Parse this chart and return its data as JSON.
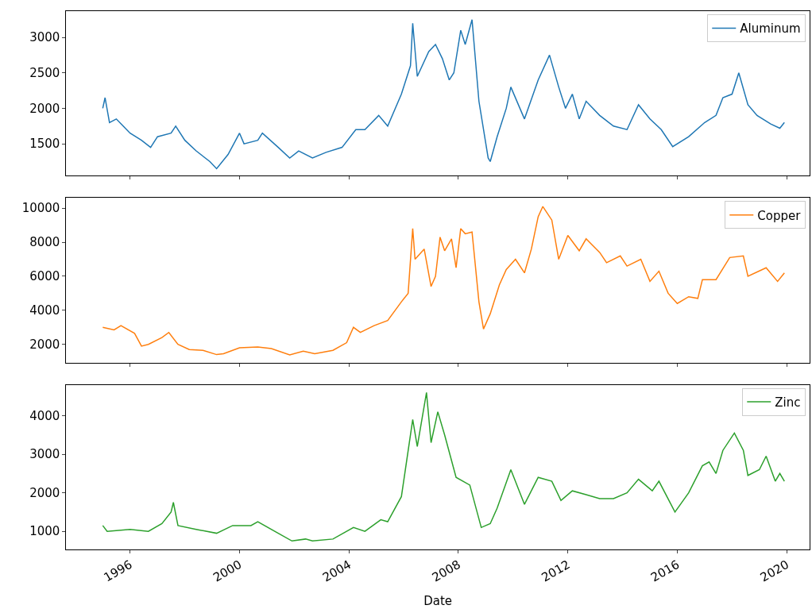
{
  "chart_data": [
    {
      "type": "line",
      "tick_labels": "y",
      "legend": "top right",
      "x": [
        "1995-01",
        "1995-02",
        "1995-04",
        "1995-07",
        "1995-10",
        "1996-01",
        "1996-06",
        "1996-10",
        "1997-01",
        "1997-07",
        "1997-09",
        "1998-01",
        "1998-06",
        "1998-12",
        "1999-03",
        "1999-08",
        "2000-01",
        "2000-03",
        "2000-09",
        "2000-11",
        "2001-06",
        "2001-11",
        "2002-03",
        "2002-09",
        "2003-03",
        "2003-10",
        "2004-04",
        "2004-08",
        "2005-02",
        "2005-06",
        "2005-12",
        "2006-04",
        "2006-05",
        "2006-07",
        "2006-12",
        "2007-03",
        "2007-06",
        "2007-09",
        "2007-11",
        "2008-02",
        "2008-04",
        "2008-07",
        "2008-10",
        "2009-02",
        "2009-03",
        "2009-06",
        "2009-10",
        "2009-12",
        "2010-06",
        "2010-12",
        "2011-05",
        "2011-09",
        "2011-12",
        "2012-03",
        "2012-06",
        "2012-09",
        "2013-03",
        "2013-09",
        "2014-03",
        "2014-08",
        "2015-01",
        "2015-06",
        "2015-11",
        "2016-06",
        "2017-01",
        "2017-06",
        "2017-09",
        "2018-01",
        "2018-04",
        "2018-08",
        "2018-12",
        "2019-06",
        "2019-10",
        "2019-12"
      ],
      "series": [
        {
          "name": "Aluminum",
          "color": "#1f77b4",
          "values": [
            2000,
            2150,
            1800,
            1850,
            1750,
            1650,
            1550,
            1450,
            1600,
            1650,
            1750,
            1550,
            1400,
            1250,
            1150,
            1350,
            1650,
            1500,
            1550,
            1650,
            1450,
            1300,
            1400,
            1300,
            1380,
            1450,
            1700,
            1700,
            1900,
            1750,
            2200,
            2600,
            3200,
            2450,
            2800,
            2900,
            2700,
            2400,
            2500,
            3100,
            2900,
            3250,
            2100,
            1300,
            1250,
            1600,
            2000,
            2300,
            1850,
            2400,
            2750,
            2300,
            2000,
            2200,
            1850,
            2100,
            1900,
            1750,
            1700,
            2050,
            1850,
            1700,
            1460,
            1600,
            1800,
            1900,
            2150,
            2200,
            2500,
            2050,
            1900,
            1780,
            1720,
            1800
          ]
        }
      ],
      "xlim": [
        "1993-09",
        "2020-11"
      ],
      "xticks": [
        {
          "value": "1996",
          "label": null
        },
        {
          "value": "2000",
          "label": null
        },
        {
          "value": "2004",
          "label": null
        },
        {
          "value": "2008",
          "label": null
        },
        {
          "value": "2012",
          "label": null
        },
        {
          "value": "2016",
          "label": null
        },
        {
          "value": "2020",
          "label": null
        }
      ],
      "ylim": [
        1050,
        3370
      ],
      "yticks": [
        1500,
        2000,
        2500,
        3000
      ]
    },
    {
      "type": "line",
      "tick_labels": "y",
      "legend": "top right",
      "x": [
        "1995-01",
        "1995-06",
        "1995-09",
        "1996-03",
        "1996-06",
        "1996-09",
        "1997-03",
        "1997-06",
        "1997-10",
        "1998-03",
        "1998-09",
        "1999-03",
        "1999-06",
        "2000-01",
        "2000-09",
        "2001-03",
        "2001-11",
        "2002-05",
        "2002-10",
        "2003-06",
        "2003-12",
        "2004-03",
        "2004-06",
        "2004-12",
        "2005-06",
        "2005-12",
        "2006-03",
        "2006-05",
        "2006-06",
        "2006-10",
        "2007-01",
        "2007-03",
        "2007-05",
        "2007-07",
        "2007-10",
        "2007-12",
        "2008-02",
        "2008-04",
        "2008-07",
        "2008-10",
        "2008-12",
        "2009-03",
        "2009-07",
        "2009-10",
        "2010-02",
        "2010-06",
        "2010-09",
        "2010-12",
        "2011-02",
        "2011-06",
        "2011-09",
        "2012-01",
        "2012-06",
        "2012-09",
        "2013-03",
        "2013-06",
        "2013-12",
        "2014-03",
        "2014-09",
        "2015-01",
        "2015-05",
        "2015-09",
        "2016-01",
        "2016-06",
        "2016-10",
        "2016-12",
        "2017-06",
        "2017-12",
        "2018-06",
        "2018-08",
        "2019-04",
        "2019-09",
        "2019-12"
      ],
      "series": [
        {
          "name": "Copper",
          "color": "#ff7f0e",
          "values": [
            3000,
            2850,
            3100,
            2650,
            1900,
            2000,
            2400,
            2700,
            2000,
            1700,
            1650,
            1400,
            1450,
            1800,
            1850,
            1750,
            1380,
            1600,
            1450,
            1650,
            2100,
            3000,
            2700,
            3100,
            3400,
            4500,
            5000,
            8800,
            7000,
            7600,
            5400,
            6000,
            8300,
            7500,
            8200,
            6500,
            8800,
            8500,
            8600,
            4500,
            2900,
            3800,
            5500,
            6400,
            7000,
            6200,
            7600,
            9500,
            10100,
            9300,
            7000,
            8400,
            7500,
            8200,
            7400,
            6800,
            7200,
            6600,
            7000,
            5700,
            6300,
            5000,
            4400,
            4800,
            4700,
            5800,
            5800,
            7100,
            7200,
            6000,
            6500,
            5700,
            6200
          ]
        }
      ],
      "xlim": [
        "1993-09",
        "2020-11"
      ],
      "xticks": [
        {
          "value": "1996",
          "label": null
        },
        {
          "value": "2000",
          "label": null
        },
        {
          "value": "2004",
          "label": null
        },
        {
          "value": "2008",
          "label": null
        },
        {
          "value": "2012",
          "label": null
        },
        {
          "value": "2016",
          "label": null
        },
        {
          "value": "2020",
          "label": null
        }
      ],
      "ylim": [
        930,
        10600
      ],
      "yticks": [
        2000,
        4000,
        6000,
        8000,
        10000
      ]
    },
    {
      "type": "line",
      "legend": "top right",
      "xlabel": "Date",
      "x": [
        "1995-01",
        "1995-03",
        "1996-01",
        "1996-09",
        "1997-03",
        "1997-07",
        "1997-08",
        "1997-10",
        "1998-06",
        "1999-03",
        "1999-10",
        "2000-06",
        "2000-09",
        "2001-06",
        "2001-12",
        "2002-06",
        "2002-09",
        "2003-06",
        "2004-03",
        "2004-08",
        "2005-03",
        "2005-06",
        "2005-12",
        "2006-05",
        "2006-07",
        "2006-11",
        "2007-01",
        "2007-04",
        "2007-07",
        "2007-12",
        "2008-06",
        "2008-11",
        "2009-03",
        "2009-06",
        "2009-12",
        "2010-06",
        "2010-12",
        "2011-06",
        "2011-10",
        "2012-03",
        "2012-09",
        "2013-03",
        "2013-09",
        "2014-03",
        "2014-08",
        "2015-02",
        "2015-05",
        "2015-12",
        "2016-06",
        "2016-12",
        "2017-03",
        "2017-06",
        "2017-09",
        "2018-02",
        "2018-06",
        "2018-08",
        "2019-01",
        "2019-04",
        "2019-08",
        "2019-10",
        "2019-12"
      ],
      "series": [
        {
          "name": "Zinc",
          "color": "#2ca02c",
          "values": [
            1150,
            1000,
            1050,
            1000,
            1200,
            1500,
            1750,
            1150,
            1050,
            950,
            1150,
            1150,
            1250,
            950,
            750,
            800,
            750,
            800,
            1100,
            1000,
            1300,
            1250,
            1900,
            3900,
            3200,
            4600,
            3300,
            4100,
            3500,
            2400,
            2200,
            1100,
            1200,
            1600,
            2600,
            1700,
            2400,
            2300,
            1800,
            2050,
            1950,
            1850,
            1850,
            2000,
            2350,
            2050,
            2300,
            1500,
            2000,
            2700,
            2800,
            2500,
            3100,
            3550,
            3100,
            2450,
            2600,
            2950,
            2300,
            2500,
            2300
          ]
        }
      ],
      "xlim": [
        "1993-09",
        "2020-11"
      ],
      "xticks": [
        {
          "value": "1996",
          "label": "1996"
        },
        {
          "value": "2000",
          "label": "2000"
        },
        {
          "value": "2004",
          "label": "2004"
        },
        {
          "value": "2008",
          "label": "2008"
        },
        {
          "value": "2012",
          "label": "2012"
        },
        {
          "value": "2016",
          "label": "2016"
        },
        {
          "value": "2020",
          "label": "2020"
        }
      ],
      "ylim": [
        530,
        4800
      ],
      "yticks": [
        1000,
        2000,
        3000,
        4000
      ]
    }
  ]
}
